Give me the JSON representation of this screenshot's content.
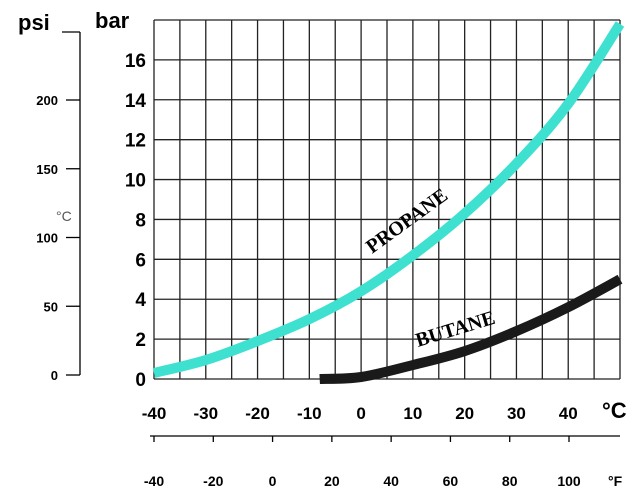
{
  "chart_data": {
    "type": "line",
    "title": "",
    "xlabel": "°C",
    "ylabel": "bar",
    "xlim": [
      -40,
      50
    ],
    "ylim": [
      0,
      18
    ],
    "grid": true,
    "x_ticks": [
      -40,
      -30,
      -20,
      -10,
      0,
      10,
      20,
      30,
      40
    ],
    "x_tick_labels": [
      "-40",
      "-30",
      "-20",
      "-10",
      "0",
      "10",
      "20",
      "30",
      "40"
    ],
    "y_ticks": [
      0,
      2,
      4,
      6,
      8,
      10,
      12,
      14,
      16
    ],
    "y_tick_labels": [
      "0",
      "2",
      "4",
      "6",
      "8",
      "10",
      "12",
      "14",
      "16"
    ],
    "secondary_x_axis": {
      "label": "°F",
      "tick_labels": [
        "-40",
        "-20",
        "0",
        "20",
        "40",
        "60",
        "80",
        "100"
      ]
    },
    "secondary_y_axis": {
      "label": "psi",
      "tick_labels": [
        "0",
        "50",
        "100",
        "150",
        "200"
      ],
      "inline_label": "°C"
    },
    "series": [
      {
        "name": "PROPANE",
        "color": "#3ee0cf",
        "x": [
          -40,
          -30,
          -20,
          -10,
          0,
          10,
          20,
          30,
          40,
          50
        ],
        "y": [
          0.3,
          0.95,
          1.9,
          3.0,
          4.4,
          6.2,
          8.3,
          10.8,
          13.8,
          17.8
        ]
      },
      {
        "name": "BUTANE",
        "color": "#1a1a1a",
        "x": [
          -8,
          0,
          10,
          20,
          30,
          40,
          50
        ],
        "y": [
          0.0,
          0.1,
          0.7,
          1.4,
          2.4,
          3.6,
          5.0
        ]
      }
    ]
  }
}
